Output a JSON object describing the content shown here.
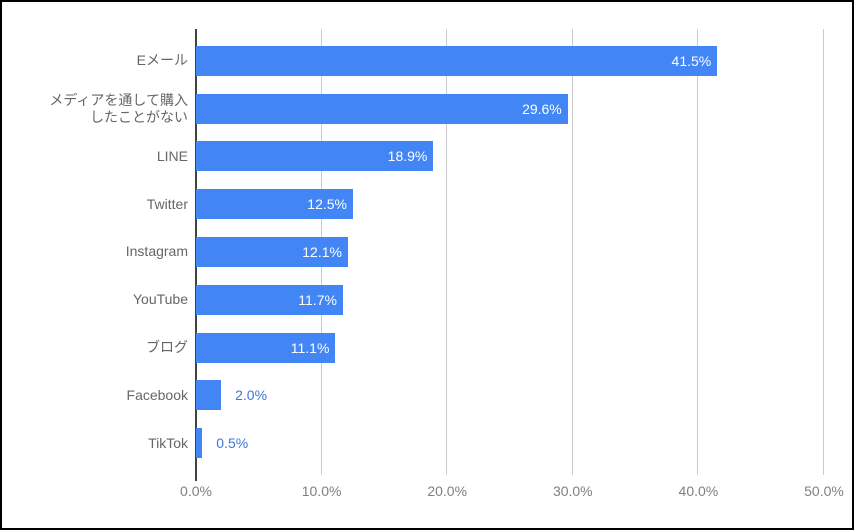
{
  "chart_data": {
    "type": "bar",
    "orientation": "horizontal",
    "title": "",
    "xlabel": "",
    "ylabel": "",
    "xlim": [
      0,
      50
    ],
    "grid": true,
    "legend_position": "none",
    "categories": [
      "Eメール",
      "メディアを通して購入\nしたことがない",
      "LINE",
      "Twitter",
      "Instagram",
      "YouTube",
      "ブログ",
      "Facebook",
      "TikTok"
    ],
    "values": [
      41.5,
      29.6,
      18.9,
      12.5,
      12.1,
      11.7,
      11.1,
      2.0,
      0.5
    ],
    "value_labels": [
      "41.5%",
      "29.6%",
      "18.9%",
      "12.5%",
      "12.1%",
      "11.7%",
      "11.1%",
      "2.0%",
      "0.5%"
    ],
    "x_ticks": [
      "0.0%",
      "10.0%",
      "20.0%",
      "30.0%",
      "40.0%",
      "50.0%"
    ],
    "x_tick_values": [
      0,
      10,
      20,
      30,
      40,
      50
    ]
  },
  "style": {
    "bar_color": "#4285f4",
    "inside_label_color": "#ffffff",
    "outside_label_color": "#3c78d8",
    "category_label_color": "#666666",
    "axis_tick_color": "#808080",
    "gridline_color": "#cccccc",
    "zero_axis_color": "#424242",
    "border_color": "#000000",
    "background_color": "#ffffff"
  },
  "layout_hints": {
    "inside_label_threshold_pct": 5
  }
}
